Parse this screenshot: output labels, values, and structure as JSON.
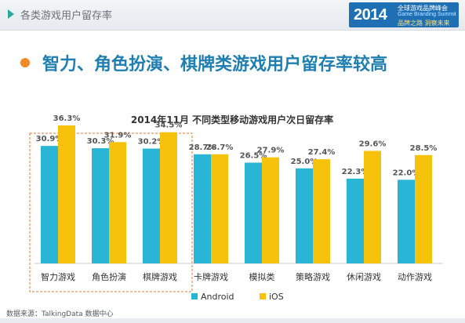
{
  "header": {
    "section_title": "各类游戏用户留存率",
    "logo": {
      "year": "2014",
      "line1": "全球游戏品牌峰会",
      "line2": "Game Branding Summit",
      "line3": "品牌之路 洞察未来"
    }
  },
  "headline": "智力、角色扮演、棋牌类游戏用户留存率较高",
  "source": "数据来源：TalkingData 数据中心",
  "colors": {
    "android": "#29b6d6",
    "ios": "#f7c20c",
    "highlight_box": "#e07b3a",
    "accent": "#f08a24",
    "headline": "#1f7fb0"
  },
  "chart_data": {
    "type": "bar",
    "title": "2014年11月 不同类型移动游戏用户次日留存率",
    "categories": [
      "智力游戏",
      "角色扮演",
      "棋牌游戏",
      "卡牌游戏",
      "模拟类",
      "策略游戏",
      "休闲游戏",
      "动作游戏"
    ],
    "series": [
      {
        "name": "Android",
        "values": [
          30.9,
          30.3,
          30.2,
          28.7,
          26.5,
          25.0,
          22.3,
          22.0
        ]
      },
      {
        "name": "iOS",
        "values": [
          36.3,
          31.9,
          34.5,
          28.7,
          27.9,
          27.4,
          29.6,
          28.5
        ]
      }
    ],
    "labels": {
      "android": [
        "30.9%",
        "30.3%",
        "30.2%",
        "28.7%",
        "26.5%",
        "25.0%",
        "22.3%",
        "22.0%"
      ],
      "ios": [
        "36.3%",
        "31.9%",
        "34.5%",
        "28.7%",
        "27.9%",
        "27.4%",
        "29.6%",
        "28.5%"
      ]
    },
    "ylim": [
      0,
      40
    ],
    "grid": false,
    "legend": "bottom",
    "highlighted_categories": [
      "智力游戏",
      "角色扮演",
      "棋牌游戏"
    ]
  }
}
